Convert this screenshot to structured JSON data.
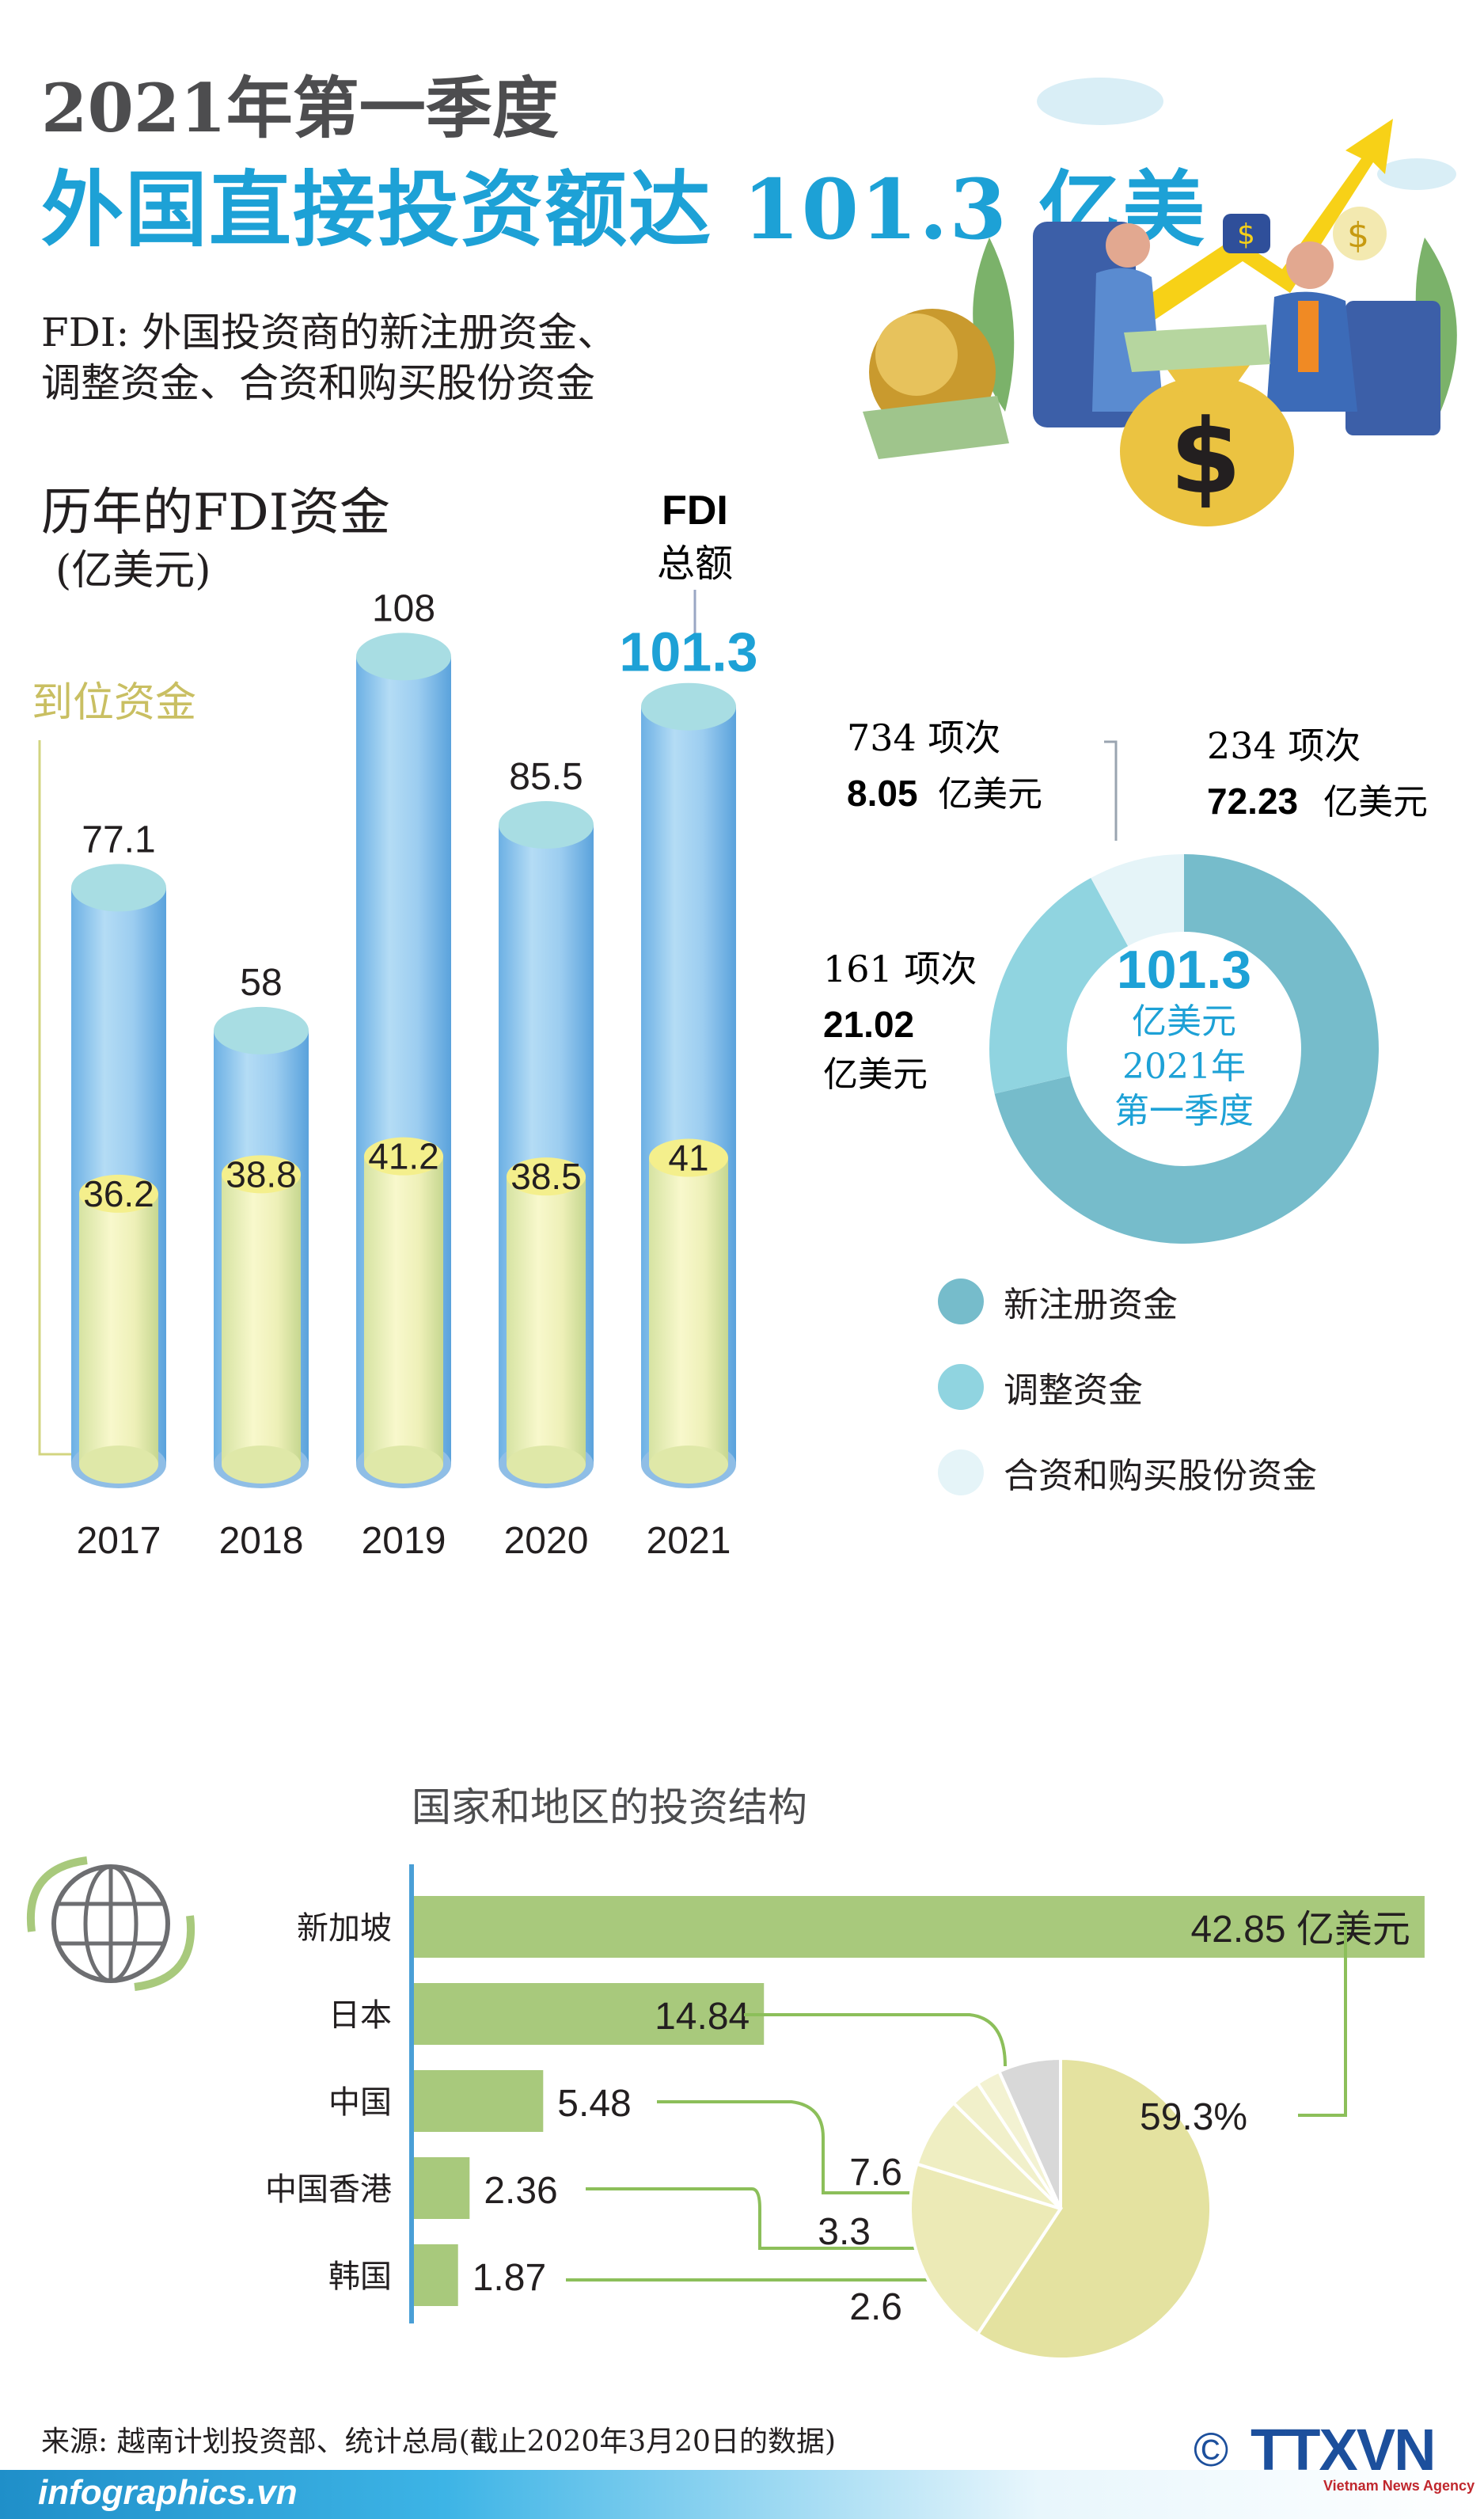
{
  "header": {
    "line1": "2021年第一季度",
    "line2": "外国直接投资额达 101.3 亿美"
  },
  "definition": {
    "line1": "FDI: 外国投资商的新注册资金、",
    "line2": "调整资金、合资和购买股份资金"
  },
  "colors": {
    "accent_blue": "#1da1d6",
    "cylinder_blue": "#8cc6ec",
    "cylinder_yellow": "#eef0b4",
    "donut_main": "#76bccb",
    "donut_mid": "#90d4e0",
    "donut_light": "#e5f4f8",
    "bar_green": "#a8c97c",
    "pie_yellow": "#e4e2a0",
    "pie_grey": "#d8d8d8",
    "footer_blue": "#27a9dd"
  },
  "chart_data": [
    {
      "type": "bar",
      "title": "历年的FDI资金",
      "unit": "(亿美元)",
      "categories": [
        "2017",
        "2018",
        "2019",
        "2020",
        "2021"
      ],
      "series": [
        {
          "name": "FDI 总额",
          "values": [
            77.1,
            58,
            108,
            85.5,
            101.3
          ]
        },
        {
          "name": "到位资金",
          "values": [
            36.2,
            38.8,
            41.2,
            38.5,
            41
          ]
        }
      ],
      "total_label_line1": "FDI",
      "total_label_line2": "总额",
      "disbursed_label": "到位资金",
      "value_labels_total": [
        "77.1",
        "58",
        "108",
        "85.5",
        "101.3"
      ],
      "value_labels_disbursed": [
        "36.2",
        "38.8",
        "41.2",
        "38.5",
        "41"
      ]
    },
    {
      "type": "pie",
      "subtype": "donut",
      "center_value": "101.3",
      "center_line1": "亿美元",
      "center_line2": "2021年",
      "center_line3": "第一季度",
      "slices": [
        {
          "name": "新注册资金",
          "count": "234 项次",
          "value": 72.23,
          "value_label": "72.23",
          "unit": "亿美元"
        },
        {
          "name": "调整资金",
          "count": "161 项次",
          "value": 21.02,
          "value_label": "21.02",
          "unit": "亿美元"
        },
        {
          "name": "合资和购买股份资金",
          "count": "734 项次",
          "value": 8.05,
          "value_label": "8.05",
          "unit": "亿美元"
        }
      ],
      "legend": [
        "新注册资金",
        "调整资金",
        "合资和购买股份资金"
      ]
    },
    {
      "type": "bar",
      "orientation": "horizontal",
      "title": "国家和地区的投资结构",
      "categories": [
        "新加坡",
        "日本",
        "中国",
        "中国香港",
        "韩国"
      ],
      "values": [
        42.85,
        14.84,
        5.48,
        2.36,
        1.87
      ],
      "value_labels": [
        "42.85 亿美元",
        "14.84",
        "5.48",
        "2.36",
        "1.87"
      ]
    },
    {
      "type": "pie",
      "slices": [
        {
          "name": "新加坡",
          "value": 59.3,
          "label": "59.3%"
        },
        {
          "name": "日本",
          "value": 20.5,
          "label": "20.5"
        },
        {
          "name": "中国",
          "value": 7.6,
          "label": "7.6"
        },
        {
          "name": "中国香港",
          "value": 3.3,
          "label": "3.3"
        },
        {
          "name": "韩国",
          "value": 2.6,
          "label": "2.6"
        },
        {
          "name": "",
          "value": 6.7,
          "label": ""
        }
      ]
    }
  ],
  "footer": {
    "source": "来源: 越南计划投资部、统计总局(截止2020年3月20日的数据)",
    "site": "infographics.vn",
    "copyright": "©",
    "agency": "TTXVN",
    "agency_sub": "Vietnam News Agency"
  }
}
